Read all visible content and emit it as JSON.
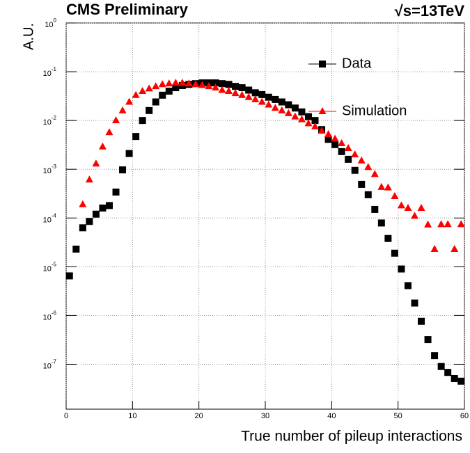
{
  "chart_data": {
    "type": "scatter",
    "title": "CMS Preliminary",
    "energy_label": "√s=13TeV",
    "x_label": "True number of pileup interactions",
    "y_label": "A.U.",
    "log_y": true,
    "grid": true,
    "legend": "top-right",
    "xlim": [
      0,
      60
    ],
    "xticks": [
      0,
      10,
      20,
      30,
      40,
      50,
      60
    ],
    "ylim": [
      1.2e-08,
      1
    ],
    "yticks": [
      {
        "value": 1,
        "label": "10",
        "exponent": "0"
      },
      {
        "value": 0.1,
        "label": "10",
        "exponent": "-1"
      },
      {
        "value": 0.01,
        "label": "10",
        "exponent": "-2"
      },
      {
        "value": 0.001,
        "label": "10",
        "exponent": "-3"
      },
      {
        "value": 0.0001,
        "label": "10",
        "exponent": "-4"
      },
      {
        "value": 1e-05,
        "label": "10",
        "exponent": "-5"
      },
      {
        "value": 1e-06,
        "label": "10",
        "exponent": "-6"
      },
      {
        "value": 1e-07,
        "label": "10",
        "exponent": "-7"
      }
    ],
    "x": [
      0.5,
      1.5,
      2.5,
      3.5,
      4.5,
      5.5,
      6.5,
      7.5,
      8.5,
      9.5,
      10.5,
      11.5,
      12.5,
      13.5,
      14.5,
      15.5,
      16.5,
      17.5,
      18.5,
      19.5,
      20.5,
      21.5,
      22.5,
      23.5,
      24.5,
      25.5,
      26.5,
      27.5,
      28.5,
      29.5,
      30.5,
      31.5,
      32.5,
      33.5,
      34.5,
      35.5,
      36.5,
      37.5,
      38.5,
      39.5,
      40.5,
      41.5,
      42.5,
      43.5,
      44.5,
      45.5,
      46.5,
      47.5,
      48.5,
      49.5,
      50.5,
      51.5,
      52.5,
      53.5,
      54.5,
      55.5,
      56.5,
      57.5,
      58.5,
      59.5
    ],
    "series": [
      {
        "name": "Data",
        "color": "#000000",
        "marker": "square",
        "values": [
          6.5e-06,
          2.3e-05,
          6.3e-05,
          8.5e-05,
          0.00012,
          0.00016,
          0.00018,
          0.00034,
          0.00097,
          0.0021,
          0.0047,
          0.01,
          0.016,
          0.024,
          0.033,
          0.04,
          0.047,
          0.052,
          0.055,
          0.057,
          0.059,
          0.059,
          0.059,
          0.057,
          0.055,
          0.05,
          0.047,
          0.042,
          0.037,
          0.034,
          0.03,
          0.027,
          0.024,
          0.021,
          0.018,
          0.015,
          0.012,
          0.01,
          0.0065,
          0.0041,
          0.0032,
          0.0023,
          0.0016,
          0.00095,
          0.00049,
          0.0003,
          0.00015,
          7.9e-05,
          3.8e-05,
          1.9e-05,
          9e-06,
          4.1e-06,
          1.8e-06,
          7.6e-07,
          3.2e-07,
          1.5e-07,
          9e-08,
          6.8e-08,
          5.1e-08,
          4.5e-08
        ]
      },
      {
        "name": "Simulation",
        "color": "#ff0000",
        "marker": "triangle",
        "values": [
          null,
          null,
          0.00019,
          0.00061,
          0.0013,
          0.0029,
          0.0057,
          0.01,
          0.016,
          0.024,
          0.033,
          0.04,
          0.045,
          0.05,
          0.055,
          0.057,
          0.059,
          0.059,
          0.057,
          0.055,
          0.053,
          0.05,
          0.047,
          0.042,
          0.04,
          0.036,
          0.033,
          0.03,
          0.027,
          0.024,
          0.021,
          0.018,
          0.016,
          0.014,
          0.012,
          0.0105,
          0.0087,
          0.0075,
          0.0061,
          0.0052,
          0.0042,
          0.0034,
          0.0027,
          0.002,
          0.0015,
          0.0011,
          0.00079,
          0.00043,
          0.00042,
          0.00028,
          0.00018,
          0.00016,
          0.00011,
          0.00016,
          7.3e-05,
          2.3e-05,
          7.4e-05,
          7.4e-05,
          2.3e-05,
          7.4e-05
        ]
      }
    ]
  }
}
